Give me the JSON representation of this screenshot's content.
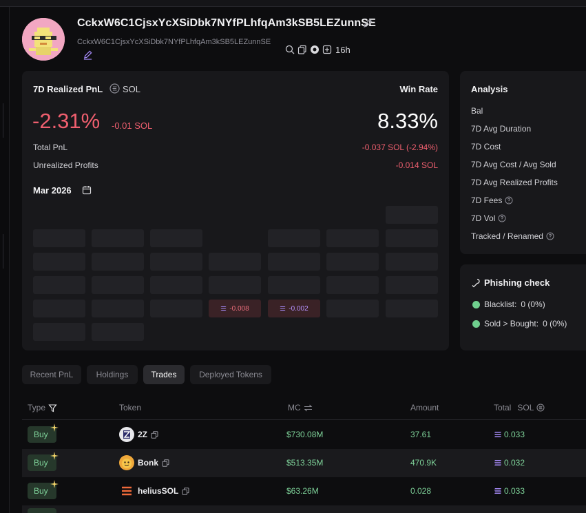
{
  "header": {
    "wallet_name": "CckxW6C1CjsxYcXSiDbk7NYfPLhfqAm3kSB5LEZunnSE",
    "wallet_address": "CckxW6C1CjsxYcXSiDbk7NYfPLhfqAm3kSB5LEZunnSE",
    "age": "16h",
    "icons": [
      "search-icon",
      "copy-icon",
      "solscan-icon",
      "add-icon"
    ]
  },
  "pnl": {
    "title": "7D Realized PnL",
    "unit": "SOL",
    "percent": "-2.31%",
    "sol": "-0.01 SOL",
    "win_rate_label": "Win Rate",
    "win_rate": "8.33%",
    "total_label": "Total PnL",
    "total_value": "-0.037 SOL (-2.94%)",
    "unrealized_label": "Unrealized Profits",
    "unrealized_value": "-0.014 SOL",
    "month": "Mar 2026",
    "calendar_cells": [
      {
        "label": "-0.008",
        "color": "#ef6f7d"
      },
      {
        "label": "-0.002",
        "color": "#b793ff"
      }
    ]
  },
  "analysis": {
    "title": "Analysis",
    "rows": [
      "Bal",
      "7D Avg Duration",
      "7D Cost",
      "7D Avg Cost / Avg Sold",
      "7D Avg Realized Profits",
      "7D Fees",
      "7D Vol",
      "Tracked / Renamed"
    ]
  },
  "phishing": {
    "title": "Phishing check",
    "blacklist_label": "Blacklist:",
    "blacklist_value": "0 (0%)",
    "sold_label": "Sold > Bought:",
    "sold_value": "0 (0%)"
  },
  "tabs": [
    "Recent PnL",
    "Holdings",
    "Trades",
    "Deployed Tokens"
  ],
  "table": {
    "headers": {
      "type": "Type",
      "token": "Token",
      "mc": "MC",
      "amount": "Amount",
      "total": "Total",
      "total_unit": "SOL"
    },
    "rows": [
      {
        "type": "Buy",
        "token": "2Z",
        "mc": "$730.08M",
        "amount": "37.61",
        "total": "0.033"
      },
      {
        "type": "Buy",
        "token": "Bonk",
        "mc": "$513.35M",
        "amount": "470.9K",
        "total": "0.032"
      },
      {
        "type": "Buy",
        "token": "heliusSOL",
        "mc": "$63.26M",
        "amount": "0.028",
        "total": "0.033"
      }
    ]
  },
  "colors": {
    "negative": "#ef5f6f",
    "positive": "#7fd39a",
    "card": "#18181b"
  }
}
